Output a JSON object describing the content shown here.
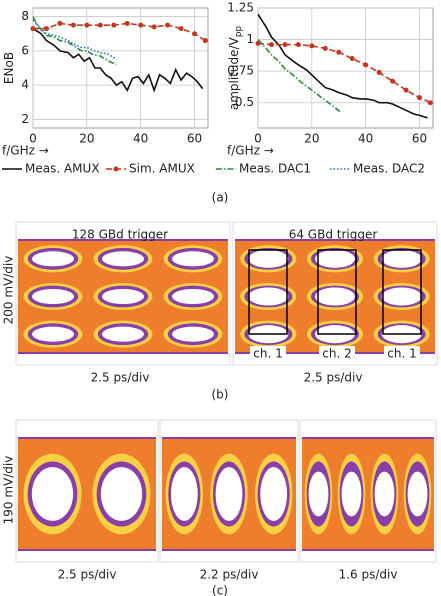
{
  "chart_data": [
    {
      "type": "line",
      "ylabel": "ENoB",
      "xlabel": "f/GHz →",
      "xlim": [
        0,
        65
      ],
      "ylim": [
        1.5,
        8.5
      ],
      "xticks": [
        0,
        20,
        40,
        60
      ],
      "yticks": [
        2,
        4,
        6,
        8
      ],
      "grid": true,
      "series": [
        {
          "name": "Meas. AMUX",
          "color": "#111111",
          "dash": "solid",
          "marker": false,
          "x": [
            0,
            3,
            5,
            8,
            10,
            13,
            15,
            17,
            19,
            21,
            23,
            25,
            27,
            29,
            31,
            33,
            35,
            37,
            39,
            41,
            43,
            45,
            47,
            49,
            51,
            53,
            55,
            57,
            59,
            61,
            63
          ],
          "values": [
            7.3,
            7.0,
            6.6,
            6.3,
            6.0,
            5.9,
            5.6,
            5.8,
            5.4,
            5.6,
            5.0,
            5.0,
            4.6,
            4.4,
            4.0,
            4.2,
            3.7,
            4.4,
            4.5,
            4.1,
            4.6,
            3.7,
            4.6,
            4.4,
            4.1,
            4.9,
            4.3,
            4.7,
            4.5,
            4.2,
            3.8
          ]
        },
        {
          "name": "Sim. AMUX",
          "color": "#c8341c",
          "dash": "dashed",
          "marker": true,
          "x": [
            0,
            5,
            10,
            15,
            20,
            25,
            30,
            35,
            40,
            45,
            50,
            55,
            60,
            64
          ],
          "values": [
            7.3,
            7.3,
            7.6,
            7.5,
            7.5,
            7.5,
            7.5,
            7.6,
            7.5,
            7.4,
            7.5,
            7.3,
            7.0,
            6.6
          ]
        },
        {
          "name": "Meas. DAC1",
          "color": "#2e8b3e",
          "dash": "dashdot",
          "marker": false,
          "x": [
            0,
            2,
            5,
            8,
            10,
            13,
            15,
            18,
            20,
            22,
            25,
            28,
            31
          ],
          "values": [
            8.0,
            7.4,
            6.9,
            6.8,
            6.6,
            6.5,
            6.3,
            6.0,
            6.0,
            5.8,
            5.7,
            5.4,
            5.2
          ]
        },
        {
          "name": "Meas. DAC2",
          "color": "#1f6fc0",
          "dash": "dotted",
          "marker": false,
          "x": [
            0,
            3,
            5,
            8,
            10,
            13,
            15,
            18,
            20,
            23,
            25,
            28,
            31
          ],
          "values": [
            7.8,
            7.3,
            7.0,
            6.9,
            6.8,
            6.6,
            6.4,
            6.2,
            6.2,
            6.0,
            5.9,
            5.8,
            5.5
          ]
        }
      ]
    },
    {
      "type": "line",
      "ylabel": "amplitude/V",
      "ylabel_subscript": "pp",
      "xlabel": "f/GHz →",
      "xlim": [
        0,
        65
      ],
      "ylim": [
        0.3,
        1.25
      ],
      "xticks": [
        0,
        20,
        40,
        60
      ],
      "yticks": [
        0.5,
        0.75,
        1,
        1.25
      ],
      "grid": true,
      "series": [
        {
          "color": "#111111",
          "dash": "solid",
          "marker": false,
          "x": [
            0,
            3,
            5,
            8,
            10,
            13,
            15,
            18,
            20,
            23,
            25,
            28,
            30,
            33,
            35,
            38,
            40,
            43,
            45,
            48,
            50,
            53,
            55,
            58,
            60,
            63
          ],
          "values": [
            1.2,
            1.1,
            1.02,
            0.95,
            0.88,
            0.83,
            0.8,
            0.76,
            0.72,
            0.66,
            0.62,
            0.6,
            0.58,
            0.56,
            0.54,
            0.53,
            0.53,
            0.52,
            0.5,
            0.5,
            0.49,
            0.46,
            0.44,
            0.41,
            0.4,
            0.38
          ]
        },
        {
          "color": "#c8341c",
          "dash": "dashed",
          "marker": true,
          "x": [
            0,
            5,
            10,
            15,
            20,
            25,
            30,
            35,
            40,
            45,
            50,
            55,
            60,
            64
          ],
          "values": [
            0.97,
            0.96,
            0.96,
            0.96,
            0.95,
            0.93,
            0.9,
            0.85,
            0.8,
            0.74,
            0.67,
            0.6,
            0.54,
            0.5
          ]
        },
        {
          "color": "#2e8b3e",
          "dash": "dashdot",
          "marker": false,
          "x": [
            0,
            3,
            5,
            8,
            10,
            13,
            15,
            18,
            20,
            23,
            25,
            28,
            31
          ],
          "values": [
            1.0,
            0.93,
            0.88,
            0.82,
            0.77,
            0.72,
            0.68,
            0.63,
            0.6,
            0.55,
            0.52,
            0.47,
            0.42
          ]
        }
      ]
    }
  ],
  "panel_a_label": "(a)",
  "panel_b": {
    "ylabel": "200 mV/div",
    "left_title": "128 GBd trigger",
    "right_title": "64 GBd trigger",
    "channels": [
      "ch. 1",
      "ch. 2",
      "ch. 1"
    ],
    "left_xlabel": "2.5 ps/div",
    "right_xlabel": "2.5 ps/div",
    "label": "(b)"
  },
  "panel_c": {
    "ylabel": "190 mV/div",
    "xlabels": [
      "2.5 ps/div",
      "2.2 ps/div",
      "1.6 ps/div"
    ],
    "label": "(c)"
  }
}
